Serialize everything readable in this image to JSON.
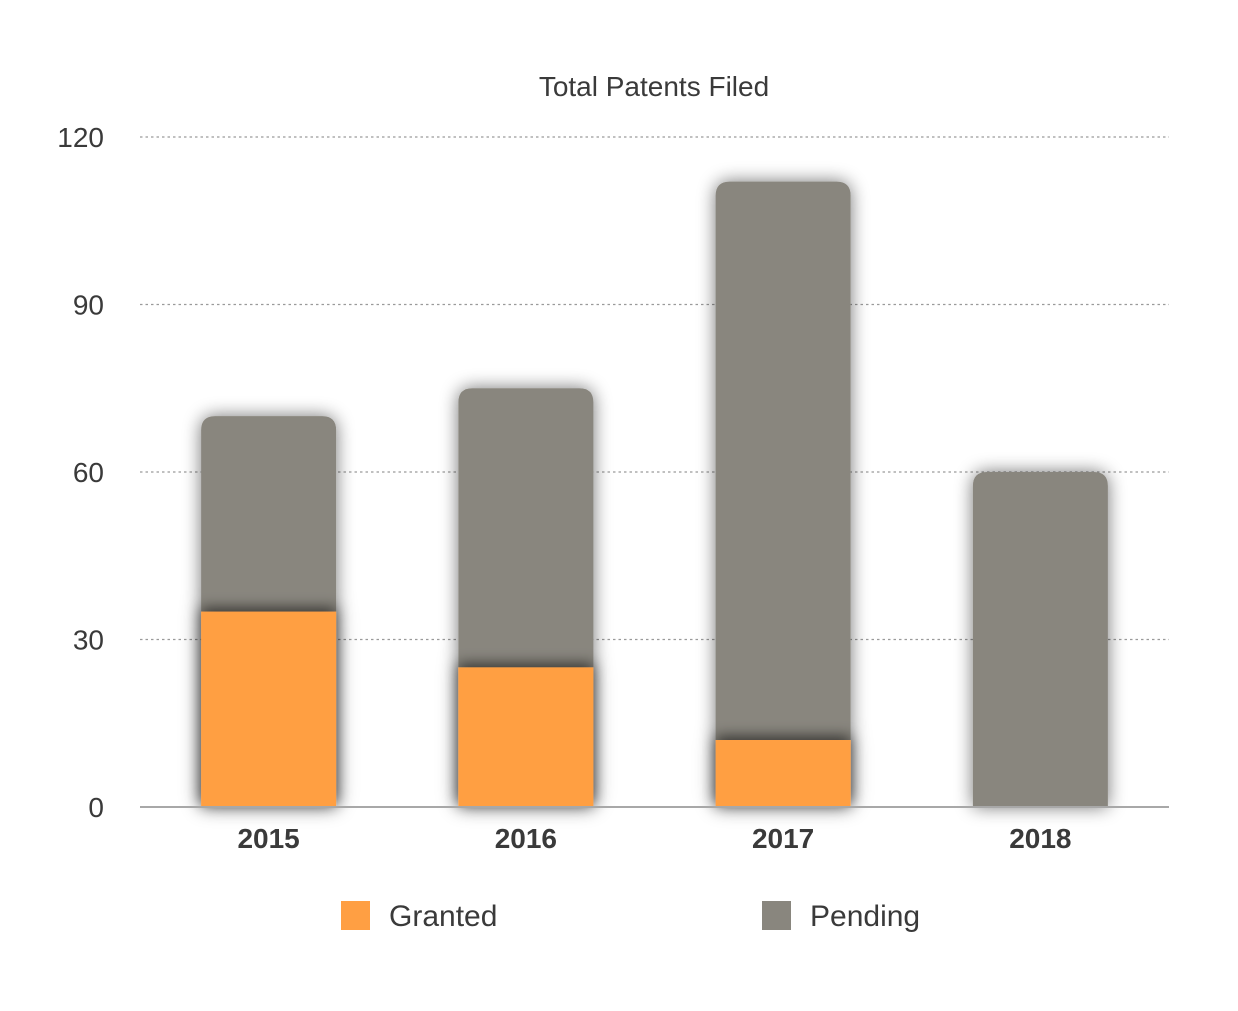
{
  "chart_data": {
    "type": "bar",
    "stacked": true,
    "title": "Total Patents Filed",
    "xlabel": "",
    "ylabel": "",
    "categories": [
      "2015",
      "2016",
      "2017",
      "2018"
    ],
    "series": [
      {
        "name": "Granted",
        "values": [
          35,
          25,
          12,
          0
        ],
        "color": "#FF9F43"
      },
      {
        "name": "Pending",
        "values": [
          35,
          50,
          100,
          60
        ],
        "color": "#89867E"
      }
    ],
    "ylim": [
      0,
      120
    ],
    "yticks": [
      "0",
      "30",
      "60",
      "90",
      "120"
    ],
    "grid": true,
    "legend_position": "bottom"
  }
}
